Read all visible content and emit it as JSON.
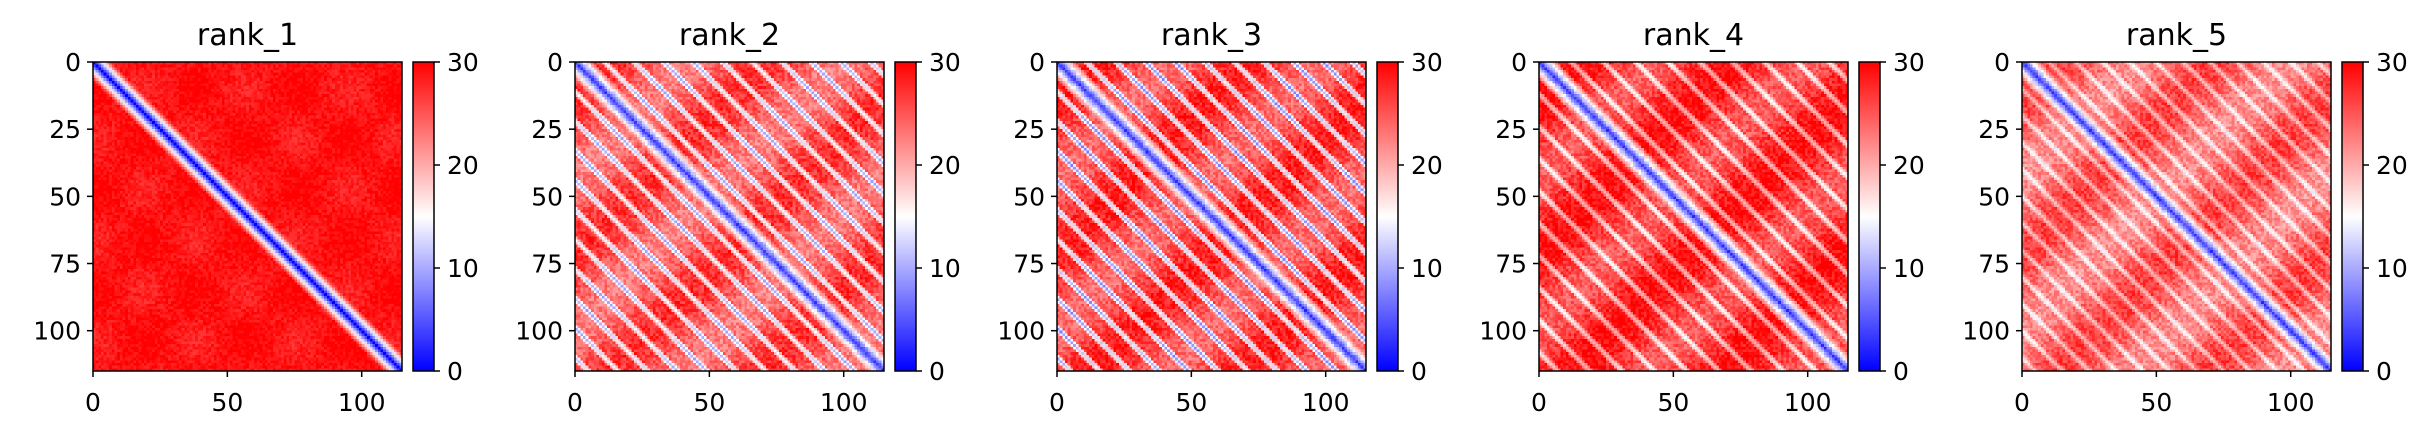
{
  "chart_data": [
    {
      "type": "heatmap",
      "title": "rank_1",
      "matrix_size": 115,
      "pattern": "rank_1",
      "x_ticks": [
        0,
        50,
        100
      ],
      "y_ticks": [
        0,
        25,
        50,
        75,
        100
      ],
      "xlim": [
        0,
        115
      ],
      "ylim": [
        115,
        0
      ],
      "colorbar": {
        "cmap": "bwr",
        "vmin": 0,
        "vmax": 30,
        "ticks": [
          0,
          10,
          20,
          30
        ]
      }
    },
    {
      "type": "heatmap",
      "title": "rank_2",
      "matrix_size": 115,
      "pattern": "rank_2",
      "x_ticks": [
        0,
        50,
        100
      ],
      "y_ticks": [
        0,
        25,
        50,
        75,
        100
      ],
      "xlim": [
        0,
        115
      ],
      "ylim": [
        115,
        0
      ],
      "colorbar": {
        "cmap": "bwr",
        "vmin": 0,
        "vmax": 30,
        "ticks": [
          0,
          10,
          20,
          30
        ]
      }
    },
    {
      "type": "heatmap",
      "title": "rank_3",
      "matrix_size": 115,
      "pattern": "rank_3",
      "x_ticks": [
        0,
        50,
        100
      ],
      "y_ticks": [
        0,
        25,
        50,
        75,
        100
      ],
      "xlim": [
        0,
        115
      ],
      "ylim": [
        115,
        0
      ],
      "colorbar": {
        "cmap": "bwr",
        "vmin": 0,
        "vmax": 30,
        "ticks": [
          0,
          10,
          20,
          30
        ]
      }
    },
    {
      "type": "heatmap",
      "title": "rank_4",
      "matrix_size": 115,
      "pattern": "rank_4",
      "x_ticks": [
        0,
        50,
        100
      ],
      "y_ticks": [
        0,
        25,
        50,
        75,
        100
      ],
      "xlim": [
        0,
        115
      ],
      "ylim": [
        115,
        0
      ],
      "colorbar": {
        "cmap": "bwr",
        "vmin": 0,
        "vmax": 30,
        "ticks": [
          0,
          10,
          20,
          30
        ]
      }
    },
    {
      "type": "heatmap",
      "title": "rank_5",
      "matrix_size": 115,
      "pattern": "rank_5",
      "x_ticks": [
        0,
        50,
        100
      ],
      "y_ticks": [
        0,
        25,
        50,
        75,
        100
      ],
      "xlim": [
        0,
        115
      ],
      "ylim": [
        115,
        0
      ],
      "colorbar": {
        "cmap": "bwr",
        "vmin": 0,
        "vmax": 30,
        "ticks": [
          0,
          10,
          20,
          30
        ]
      }
    }
  ]
}
